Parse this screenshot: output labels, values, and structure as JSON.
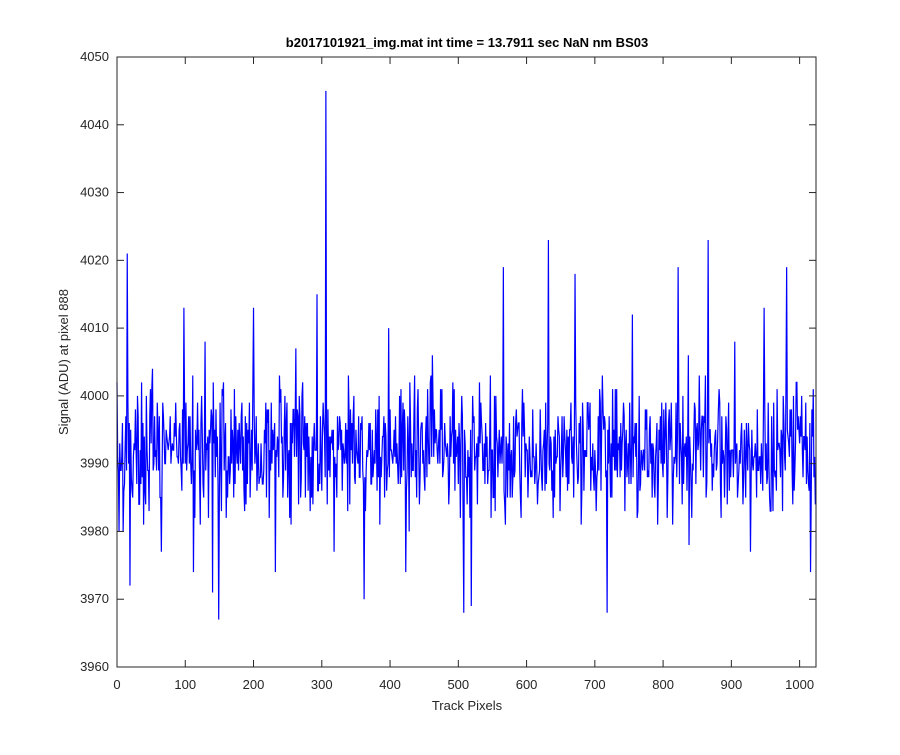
{
  "chart_data": {
    "type": "line",
    "title": "b2017101921_img.mat int time = 13.7911 sec  NaN nm BS03",
    "xlabel": "Track Pixels",
    "ylabel": "Signal (ADU) at pixel 888",
    "xlim": [
      0,
      1024
    ],
    "ylim": [
      3960,
      4050
    ],
    "xticks": [
      "0",
      "100",
      "200",
      "300",
      "400",
      "500",
      "600",
      "700",
      "800",
      "900",
      "1000"
    ],
    "yticks": [
      "3960",
      "3970",
      "3980",
      "3990",
      "4000",
      "4010",
      "4020",
      "4030",
      "4040",
      "4050"
    ],
    "grid": false,
    "series": [
      {
        "color": "#0000ff",
        "noise": {
          "count": 1024,
          "mean": 3992,
          "spread": 8,
          "min": 3967,
          "max": 4023,
          "seed": 17
        },
        "peaks": [
          {
            "x": 0,
            "y": 4002
          },
          {
            "x": 3,
            "y": 3980
          },
          {
            "x": 15,
            "y": 4021
          },
          {
            "x": 19,
            "y": 3972
          },
          {
            "x": 30,
            "y": 4000
          },
          {
            "x": 65,
            "y": 3977
          },
          {
            "x": 98,
            "y": 4013
          },
          {
            "x": 112,
            "y": 3974
          },
          {
            "x": 129,
            "y": 4008
          },
          {
            "x": 140,
            "y": 3971
          },
          {
            "x": 149,
            "y": 3967
          },
          {
            "x": 172,
            "y": 4001
          },
          {
            "x": 200,
            "y": 4013
          },
          {
            "x": 232,
            "y": 3974
          },
          {
            "x": 262,
            "y": 4007
          },
          {
            "x": 293,
            "y": 4015
          },
          {
            "x": 306,
            "y": 4045
          },
          {
            "x": 318,
            "y": 3977
          },
          {
            "x": 362,
            "y": 3970
          },
          {
            "x": 398,
            "y": 4010
          },
          {
            "x": 423,
            "y": 3974
          },
          {
            "x": 462,
            "y": 4006
          },
          {
            "x": 508,
            "y": 3968
          },
          {
            "x": 519,
            "y": 3969
          },
          {
            "x": 566,
            "y": 4019
          },
          {
            "x": 632,
            "y": 4023
          },
          {
            "x": 671,
            "y": 4018
          },
          {
            "x": 718,
            "y": 3968
          },
          {
            "x": 755,
            "y": 4012
          },
          {
            "x": 822,
            "y": 4019
          },
          {
            "x": 866,
            "y": 4023
          },
          {
            "x": 905,
            "y": 4008
          },
          {
            "x": 928,
            "y": 3977
          },
          {
            "x": 948,
            "y": 4013
          },
          {
            "x": 981,
            "y": 4019
          },
          {
            "x": 1016,
            "y": 3974
          },
          {
            "x": 1020,
            "y": 4001
          }
        ]
      }
    ]
  }
}
